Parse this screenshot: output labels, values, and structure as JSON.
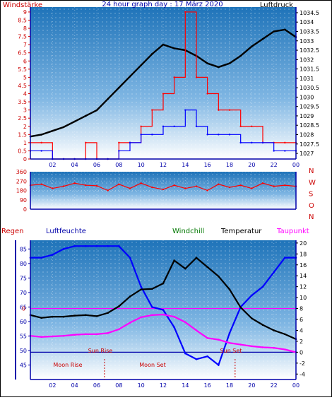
{
  "title": "24 hour graph day : 17 März 2020",
  "chart_data": [
    {
      "type": "line",
      "panel": "wind-pressure",
      "left_axis_label": "Windstärke",
      "right_axis_label": "Luftdruck",
      "left_ticks": [
        "0",
        "0.5",
        "1",
        "1.5",
        "2",
        "2.5",
        "3",
        "3.5",
        "4",
        "4.5",
        "5",
        "5.5",
        "6",
        "6.5",
        "7",
        "7.5",
        "8",
        "8.5",
        "9"
      ],
      "right_ticks": [
        "1027",
        "1027.5",
        "1028",
        "1028.5",
        "1029",
        "1029.5",
        "1030",
        "1030.5",
        "1031",
        "1031.5",
        "1032",
        "1032.5",
        "1033",
        "1033.5",
        "1034",
        "1034.5"
      ],
      "x_ticks": [
        "02",
        "04",
        "06",
        "08",
        "10",
        "12",
        "14",
        "16",
        "18",
        "20",
        "22",
        "00"
      ],
      "ylim_left": [
        0,
        9.3
      ],
      "ylim_right": [
        1026.7,
        1034.8
      ],
      "series": [
        {
          "color": "#000000",
          "axis": "right",
          "x": [
            0,
            1,
            2,
            3,
            4,
            5,
            6,
            7,
            8,
            9,
            10,
            11,
            12,
            13,
            14,
            15,
            16,
            17,
            18,
            19,
            20,
            21,
            22,
            23,
            24
          ],
          "values": [
            1027.9,
            1028.0,
            1028.2,
            1028.4,
            1028.7,
            1029.0,
            1029.3,
            1029.9,
            1030.5,
            1031.1,
            1031.7,
            1032.3,
            1032.8,
            1032.6,
            1032.5,
            1032.2,
            1031.8,
            1031.6,
            1031.8,
            1032.2,
            1032.7,
            1033.1,
            1033.5,
            1033.6,
            1033.2
          ],
          "note_printed": ""
        },
        {
          "color": "#ff0000",
          "axis": "left",
          "x": [
            0,
            1,
            2,
            3,
            4,
            5,
            6,
            7,
            8,
            9,
            10,
            11,
            12,
            13,
            14,
            15,
            16,
            17,
            18,
            19,
            20,
            21,
            22,
            23,
            24
          ],
          "values": [
            1,
            1,
            0,
            0,
            0,
            1,
            0,
            0,
            1,
            1,
            2,
            3,
            4,
            5,
            9,
            5,
            4,
            3,
            3,
            2,
            2,
            1,
            1,
            1,
            1
          ]
        },
        {
          "color": "#0000ff",
          "axis": "left",
          "x": [
            0,
            1,
            2,
            3,
            4,
            5,
            6,
            7,
            8,
            9,
            10,
            11,
            12,
            13,
            14,
            15,
            16,
            17,
            18,
            19,
            20,
            21,
            22,
            23,
            24
          ],
          "values": [
            0.5,
            0.5,
            0,
            0,
            0,
            0,
            0,
            0,
            0.5,
            1,
            1.5,
            1.5,
            2,
            2,
            3,
            2,
            1.5,
            1.5,
            1.5,
            1,
            1,
            1,
            0.5,
            0.5,
            0.5
          ]
        }
      ]
    },
    {
      "type": "line",
      "panel": "wind-direction",
      "left_ticks": [
        "0",
        "90",
        "180",
        "270",
        "360"
      ],
      "right_labels": [
        "N",
        "W",
        "S",
        "O",
        "N"
      ],
      "x_ticks": [],
      "ylim": [
        0,
        360
      ],
      "series": [
        {
          "color": "#ff0000",
          "x": [
            0,
            1,
            2,
            3,
            4,
            5,
            6,
            7,
            8,
            9,
            10,
            11,
            12,
            13,
            14,
            15,
            16,
            17,
            18,
            19,
            20,
            21,
            22,
            23,
            24
          ],
          "values": [
            230,
            240,
            200,
            220,
            250,
            230,
            225,
            180,
            240,
            200,
            250,
            210,
            190,
            230,
            200,
            220,
            180,
            240,
            210,
            230,
            200,
            250,
            220,
            230,
            220
          ]
        }
      ]
    },
    {
      "type": "line",
      "panel": "humidity-temperature",
      "legend": [
        "Regen",
        "Luftfeuchte",
        "Windchill",
        "Temperatur",
        "Taupunkt"
      ],
      "left_ticks": [
        "45",
        "50",
        "55",
        "60",
        "65",
        "70",
        "75",
        "80",
        "85"
      ],
      "right_ticks": [
        "-4",
        "-2",
        "0",
        "2",
        "4",
        "6",
        "8",
        "10",
        "12",
        "14",
        "16",
        "18",
        "20"
      ],
      "x_ticks": [
        "02",
        "04",
        "06",
        "08",
        "10",
        "12",
        "14",
        "16",
        "18",
        "20",
        "22",
        "00"
      ],
      "ylim_left": [
        40,
        88
      ],
      "ylim_right": [
        -5,
        20.5
      ],
      "zero_label": "0",
      "annotations": [
        "Sun Rise",
        "Sun Set",
        "Moon Rise",
        "Moon Set"
      ],
      "series": [
        {
          "color": "#0000ff",
          "axis": "left",
          "x": [
            0,
            1,
            2,
            3,
            4,
            5,
            6,
            7,
            8,
            9,
            10,
            11,
            12,
            13,
            14,
            15,
            16,
            17,
            18,
            19,
            20,
            21,
            22,
            23,
            24
          ],
          "values": [
            82,
            82,
            83,
            85,
            86,
            86,
            86,
            86,
            86,
            82,
            72,
            65,
            64,
            58,
            49,
            47,
            48,
            45,
            56,
            65,
            69,
            72,
            77,
            82,
            82
          ]
        },
        {
          "color": "#000000",
          "axis": "right",
          "x": [
            0,
            1,
            2,
            3,
            4,
            5,
            6,
            7,
            8,
            9,
            10,
            11,
            12,
            13,
            14,
            15,
            16,
            17,
            18,
            19,
            20,
            21,
            22,
            23,
            24
          ],
          "values": [
            6.8,
            6.3,
            6.5,
            6.5,
            6.7,
            6.8,
            6.6,
            7.2,
            8.4,
            10.2,
            11.5,
            11.6,
            12.6,
            16.8,
            15.3,
            17.3,
            15.6,
            13.9,
            11.5,
            8.2,
            6.2,
            5.0,
            4.0,
            3.3,
            2.4
          ]
        },
        {
          "color": "#ff00ff",
          "axis": "right",
          "x": [
            0,
            1,
            2,
            3,
            4,
            5,
            6,
            7,
            8,
            9,
            10,
            11,
            12,
            13,
            14,
            15,
            16,
            17,
            18,
            19,
            20,
            21,
            22,
            23,
            24
          ],
          "values": [
            3.0,
            2.8,
            2.9,
            3.0,
            3.2,
            3.3,
            3.3,
            3.5,
            4.2,
            5.4,
            6.4,
            6.8,
            6.9,
            6.5,
            5.5,
            4.0,
            2.6,
            2.3,
            1.7,
            1.4,
            1.1,
            0.9,
            0.8,
            0.5,
            0.0
          ]
        }
      ]
    }
  ],
  "colors": {
    "panel_top": "#2b86c7",
    "panel_bottom": "#ffffff",
    "axis": "#0000aa",
    "left_text": "#cc0000",
    "right_text": "#000000"
  }
}
